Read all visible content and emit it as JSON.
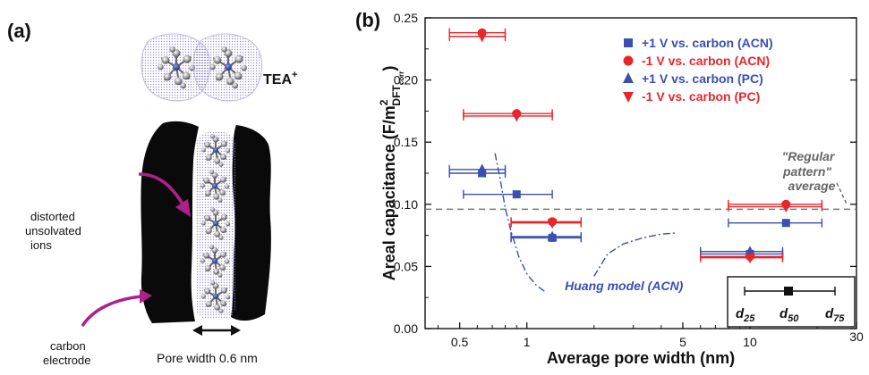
{
  "panel_a": {
    "label": "(a)",
    "ion_label": "TEA",
    "ion_charge": "+",
    "annotation_1": [
      "distorted",
      "unsolvated",
      "ions"
    ],
    "annotation_2": [
      "carbon",
      "electrode"
    ],
    "pore_caption": "Pore width 0.6 nm",
    "colors": {
      "arrow": "#b0208c",
      "electrode": "#0a0a0a",
      "atom_gray": "#8c8c8c",
      "atom_center": "#2a3a9a",
      "halo": "#7b6fb8"
    }
  },
  "panel_b": {
    "label": "(b)"
  },
  "chart_data": {
    "type": "scatter",
    "xscale": "log",
    "xlim": [
      0.35,
      30
    ],
    "ylim": [
      0,
      0.25
    ],
    "xticks": [
      0.5,
      1,
      5,
      10,
      30
    ],
    "xtick_labels": [
      "0.5",
      "1",
      "5",
      "10",
      "30"
    ],
    "yticks": [
      0.0,
      0.05,
      0.1,
      0.15,
      0.2,
      0.25
    ],
    "ytick_labels": [
      "0.00",
      "0.05",
      "0.10",
      "0.15",
      "0.20",
      "0.25"
    ],
    "xlabel": "Average pore width (nm)",
    "ylabel_main": "Areal capacitance (F/m",
    "ylabel_sup": "2",
    "ylabel_sub": "DFT",
    "ylabel_subsub": "corr",
    "ylabel_close": ")",
    "legend_position": "top-center",
    "series": [
      {
        "name": "+1 V vs. carbon (ACN)",
        "marker": "square",
        "color": "#3a4fb0",
        "points": [
          {
            "x": 0.63,
            "y": 0.125,
            "xerr": [
              0.45,
              0.8
            ]
          },
          {
            "x": 0.9,
            "y": 0.108,
            "xerr": [
              0.52,
              1.3
            ]
          },
          {
            "x": 1.3,
            "y": 0.073,
            "xerr": [
              0.85,
              1.75
            ]
          },
          {
            "x": 10.0,
            "y": 0.06,
            "xerr": [
              6.0,
              14.0
            ]
          },
          {
            "x": 14.5,
            "y": 0.085,
            "xerr": [
              8.0,
              21.0
            ]
          }
        ]
      },
      {
        "name": "-1 V vs. carbon (ACN)",
        "marker": "circle",
        "color": "#e8262a",
        "points": [
          {
            "x": 0.63,
            "y": 0.238,
            "xerr": [
              0.45,
              0.8
            ]
          },
          {
            "x": 0.9,
            "y": 0.173,
            "xerr": [
              0.52,
              1.3
            ]
          },
          {
            "x": 1.3,
            "y": 0.086,
            "xerr": [
              0.85,
              1.75
            ]
          },
          {
            "x": 10.0,
            "y": 0.058,
            "xerr": [
              6.0,
              14.0
            ]
          },
          {
            "x": 14.5,
            "y": 0.1,
            "xerr": [
              8.0,
              21.0
            ]
          }
        ]
      },
      {
        "name": "+1 V vs. carbon (PC)",
        "marker": "triangle-up",
        "color": "#3a4fb0",
        "points": [
          {
            "x": 0.63,
            "y": 0.128,
            "xerr": [
              0.45,
              0.8
            ]
          },
          {
            "x": 1.3,
            "y": 0.074,
            "xerr": [
              0.85,
              1.75
            ]
          },
          {
            "x": 10.0,
            "y": 0.062,
            "xerr": [
              6.0,
              14.0
            ]
          }
        ]
      },
      {
        "name": "-1 V vs. carbon (PC)",
        "marker": "triangle-down",
        "color": "#e8262a",
        "points": [
          {
            "x": 0.63,
            "y": 0.235,
            "xerr": [
              0.45,
              0.8
            ]
          },
          {
            "x": 0.9,
            "y": 0.171,
            "xerr": [
              0.52,
              1.3
            ]
          },
          {
            "x": 1.3,
            "y": 0.085,
            "xerr": [
              0.85,
              1.75
            ]
          },
          {
            "x": 10.0,
            "y": 0.057,
            "xerr": [
              6.0,
              14.0
            ]
          },
          {
            "x": 14.5,
            "y": 0.098,
            "xerr": [
              8.0,
              21.0
            ]
          }
        ]
      }
    ],
    "reference_line": {
      "y": 0.096,
      "color": "#777777"
    },
    "huang_model": {
      "label": "Huang model (ACN)",
      "color": "#3a4fb0",
      "branch_1": [
        [
          0.72,
          0.141
        ],
        [
          0.76,
          0.12
        ],
        [
          0.8,
          0.097
        ],
        [
          0.85,
          0.078
        ],
        [
          0.92,
          0.058
        ],
        [
          1.0,
          0.044
        ],
        [
          1.1,
          0.035
        ],
        [
          1.2,
          0.03
        ]
      ],
      "branch_2": [
        [
          2.0,
          0.042
        ],
        [
          2.3,
          0.06
        ],
        [
          2.7,
          0.068
        ],
        [
          3.3,
          0.073
        ],
        [
          4.0,
          0.076
        ],
        [
          4.7,
          0.077
        ]
      ]
    },
    "regular_pattern": {
      "line1": "\"Regular",
      "line2": "pattern\"",
      "line3": "average",
      "color": "#666666"
    },
    "inset": {
      "d25": "d",
      "d25_sub": "25",
      "d50": "d",
      "d50_sub": "50",
      "d75": "d",
      "d75_sub": "75"
    }
  }
}
